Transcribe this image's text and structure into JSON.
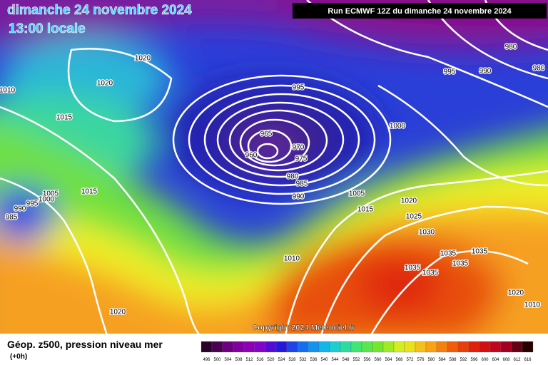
{
  "header": {
    "date": "dimanche 24 novembre 2024",
    "time": "13:00 locale",
    "run": "Run ECMWF 12Z du dimanche 24 novembre 2024"
  },
  "copyright": "Copyright 2024 Meteociel.fr",
  "legend": {
    "title": "Géop. z500, pression niveau mer",
    "lead": "(+0h)",
    "levels": [
      496,
      500,
      504,
      508,
      512,
      516,
      520,
      524,
      528,
      532,
      536,
      540,
      544,
      548,
      552,
      556,
      560,
      564,
      568,
      572,
      576,
      580,
      584,
      588,
      592,
      596,
      600,
      604,
      608,
      612,
      616
    ]
  },
  "isobar_labels": [
    "1020",
    "1020",
    "1010",
    "1015",
    "995",
    "965",
    "960",
    "970",
    "975",
    "980",
    "985",
    "990",
    "1000",
    "1005",
    "1015",
    "1020",
    "1025",
    "1030",
    "1035",
    "1035",
    "1035",
    "1035",
    "1035",
    "1010",
    "1015",
    "1005",
    "1000",
    "995",
    "990",
    "985",
    "1020",
    "980",
    "995",
    "990",
    "980",
    "1020",
    "1010"
  ]
}
